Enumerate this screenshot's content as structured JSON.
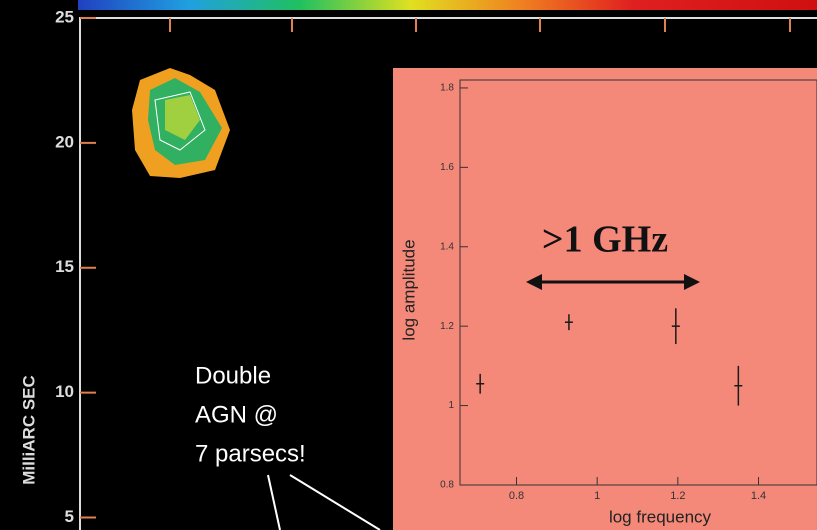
{
  "chart_data": [
    {
      "type": "image",
      "y_label": "MilliARC SEC",
      "ylim": [
        4.5,
        25
      ],
      "yticks": [
        5,
        10,
        15,
        20,
        25
      ],
      "annotation_lines": [
        "Double",
        "AGN @",
        "7 parsecs!"
      ]
    },
    {
      "type": "errorbar",
      "x_label": "log frequency",
      "y_label": "log amplitude",
      "annotation": ">1 GHz",
      "x": [
        0.71,
        0.93,
        1.195,
        1.35
      ],
      "values": [
        1.055,
        1.21,
        1.2,
        1.05
      ],
      "errors": [
        0.025,
        0.02,
        0.045,
        0.05
      ],
      "xlim": [
        0.66,
        1.54
      ],
      "ylim": [
        0.8,
        1.82
      ],
      "xticks": [
        0.8,
        1,
        1.2,
        1.4
      ],
      "yticks": [
        0.8,
        1,
        1.2,
        1.4,
        1.6,
        1.8
      ],
      "color": "#1a1a1a"
    }
  ]
}
